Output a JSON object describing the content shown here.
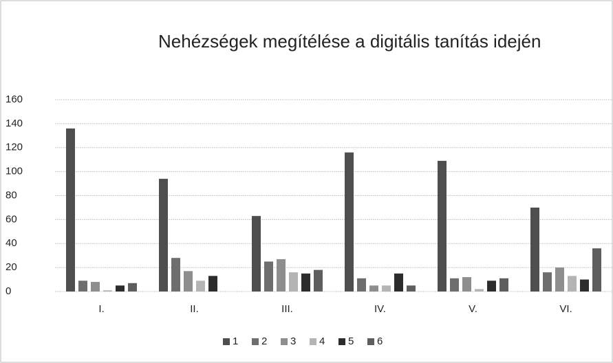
{
  "chart_data": {
    "type": "bar",
    "title": "Nehézségek megítélése a digitális tanítás idején",
    "categories": [
      "I.",
      "II.",
      "III.",
      "IV.",
      "V.",
      "VI."
    ],
    "series": [
      {
        "name": "1",
        "color": "#4e4e4e",
        "values": [
          136,
          94,
          63,
          116,
          109,
          70
        ]
      },
      {
        "name": "2",
        "color": "#6e6e6e",
        "values": [
          9,
          28,
          25,
          11,
          11,
          16
        ]
      },
      {
        "name": "3",
        "color": "#8e8e8e",
        "values": [
          8,
          17,
          27,
          5,
          12,
          20
        ]
      },
      {
        "name": "4",
        "color": "#b4b4b4",
        "values": [
          1,
          9,
          16,
          5,
          2,
          13
        ]
      },
      {
        "name": "5",
        "color": "#2c2c2c",
        "values": [
          5,
          13,
          15,
          15,
          9,
          10
        ]
      },
      {
        "name": "6",
        "color": "#5e5e5e",
        "values": [
          7,
          0,
          18,
          5,
          11,
          36
        ]
      }
    ],
    "ylim": [
      0,
      160
    ],
    "yticks": [
      0,
      20,
      40,
      60,
      80,
      100,
      120,
      140,
      160
    ],
    "grid": true,
    "legend": "bottom"
  }
}
